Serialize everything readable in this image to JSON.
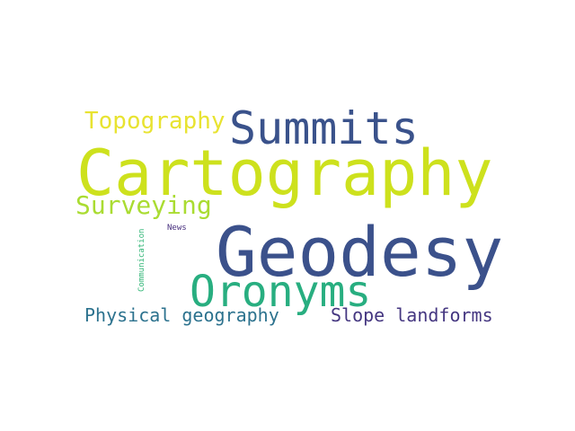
{
  "words": [
    {
      "text": "Topography",
      "color": "#e8e331"
    },
    {
      "text": "Summits",
      "color": "#3a528b"
    },
    {
      "text": "Cartography",
      "color": "#cde11d"
    },
    {
      "text": "Surveying",
      "color": "#aadc32"
    },
    {
      "text": "Geodesy",
      "color": "#3b518b"
    },
    {
      "text": "Oronyms",
      "color": "#28ae80"
    },
    {
      "text": "News",
      "color": "#472f7d"
    },
    {
      "text": "Communication",
      "color": "#35b779"
    },
    {
      "text": "Physical geography",
      "color": "#2c728e"
    },
    {
      "text": "Slope landforms",
      "color": "#453781"
    }
  ]
}
